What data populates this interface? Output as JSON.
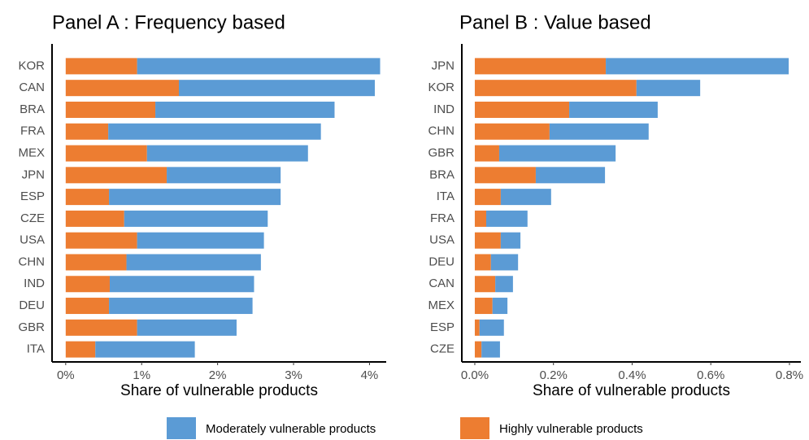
{
  "chart_data": [
    {
      "type": "bar",
      "orientation": "horizontal",
      "stacked": true,
      "title": "Panel A : Frequency based",
      "xlabel": "Share of vulnerable products",
      "categories": [
        "KOR",
        "CAN",
        "BRA",
        "FRA",
        "MEX",
        "JPN",
        "ESP",
        "CZE",
        "USA",
        "CHN",
        "IND",
        "DEU",
        "GBR",
        "ITA"
      ],
      "series": [
        {
          "name": "Moderately vulnerable products",
          "color": "#5b9bd5",
          "values": [
            3.2,
            2.58,
            2.36,
            2.8,
            2.12,
            1.5,
            2.26,
            1.89,
            1.67,
            1.77,
            1.9,
            1.89,
            1.31,
            1.31
          ]
        },
        {
          "name": "Highly vulnerable products",
          "color": "#ed7d31",
          "values": [
            0.94,
            1.49,
            1.18,
            0.56,
            1.07,
            1.33,
            0.57,
            0.77,
            0.94,
            0.8,
            0.58,
            0.57,
            0.94,
            0.39
          ]
        }
      ],
      "xlim": [
        -0.18,
        4.22
      ],
      "xticks": [
        {
          "value": 0,
          "label": "0%"
        },
        {
          "value": 1,
          "label": "1%"
        },
        {
          "value": 2,
          "label": "2%"
        },
        {
          "value": 3,
          "label": "3%"
        },
        {
          "value": 4,
          "label": "4%"
        }
      ],
      "legend": "bottom"
    },
    {
      "type": "bar",
      "orientation": "horizontal",
      "stacked": true,
      "title": "Panel B : Value based",
      "xlabel": "Share of vulnerable products",
      "categories": [
        "JPN",
        "KOR",
        "IND",
        "CHN",
        "GBR",
        "BRA",
        "ITA",
        "FRA",
        "USA",
        "DEU",
        "CAN",
        "MEX",
        "ESP",
        "CZE"
      ],
      "series": [
        {
          "color": "#5b9bd5",
          "values": [
            0.465,
            0.162,
            0.225,
            0.252,
            0.296,
            0.176,
            0.128,
            0.105,
            0.05,
            0.069,
            0.045,
            0.038,
            0.062,
            0.047
          ]
        },
        {
          "color": "#ed7d31",
          "values": [
            0.333,
            0.411,
            0.24,
            0.19,
            0.062,
            0.155,
            0.066,
            0.029,
            0.066,
            0.041,
            0.052,
            0.045,
            0.012,
            0.017
          ]
        }
      ],
      "xlim": [
        -0.033,
        0.829
      ],
      "xticks": [
        {
          "value": 0,
          "label": "0.0%"
        },
        {
          "value": 0.2,
          "label": "0.2%"
        },
        {
          "value": 0.4,
          "label": "0.4%"
        },
        {
          "value": 0.6,
          "label": "0.6%"
        },
        {
          "value": 0.8,
          "label": "0.8%"
        }
      ]
    }
  ]
}
